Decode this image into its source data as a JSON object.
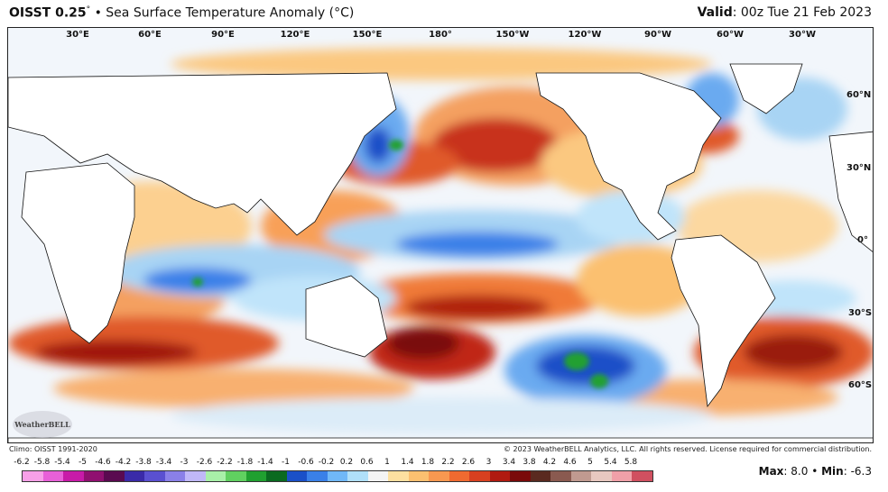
{
  "header": {
    "product": "OISST 0.25",
    "degree": "°",
    "bullet": "•",
    "subtitle": "Sea Surface Temperature Anomaly (°C)",
    "valid_label": "Valid",
    "valid_time": ": 00z Tue 21 Feb 2023"
  },
  "map": {
    "lon_labels": [
      "30°E",
      "60°E",
      "90°E",
      "120°E",
      "150°E",
      "180°",
      "150°W",
      "120°W",
      "90°W",
      "60°W",
      "30°W"
    ],
    "lat_labels": [
      "60°N",
      "30°N",
      "0°",
      "30°S",
      "60°S"
    ]
  },
  "footer": {
    "climo": "Climo: OISST 1991-2020",
    "copyright": "© 2023 WeatherBELL Analytics, LLC. All rights reserved. License required for commercial distribution.",
    "logo_text": "WeatherBELL"
  },
  "colorbar": {
    "ticks": [
      "-6.2",
      "-5.8",
      "-5.4",
      "-5",
      "-4.6",
      "-4.2",
      "-3.8",
      "-3.4",
      "-3",
      "-2.6",
      "-2.2",
      "-1.8",
      "-1.4",
      "-1",
      "-0.6",
      "-0.2",
      "0.2",
      "0.6",
      "1",
      "1.4",
      "1.8",
      "2.2",
      "2.6",
      "3",
      "3.4",
      "3.8",
      "4.2",
      "4.6",
      "5",
      "5.4",
      "5.8"
    ],
    "colors": [
      "#f7a0e8",
      "#e860d8",
      "#c81aa8",
      "#901070",
      "#5a0a50",
      "#3a2aa8",
      "#5a50d0",
      "#8a80e8",
      "#c0b8f8",
      "#a8f0a8",
      "#60d060",
      "#20a030",
      "#0a6a20",
      "#1a50c8",
      "#3a80e8",
      "#70b8f8",
      "#b0e0fa",
      "#f4f4f4",
      "#fde0a0",
      "#fbc070",
      "#f89850",
      "#f06a30",
      "#d84020",
      "#b01a10",
      "#7a0a0a",
      "#5a2a20",
      "#8a5a50",
      "#c09a90",
      "#e8c8c0",
      "#f0a0a8",
      "#d05060"
    ]
  },
  "stats": {
    "max_label": "Max",
    "max_value": ": 8.0",
    "sep": "•",
    "min_label": "Min",
    "min_value": ": -6.3"
  }
}
